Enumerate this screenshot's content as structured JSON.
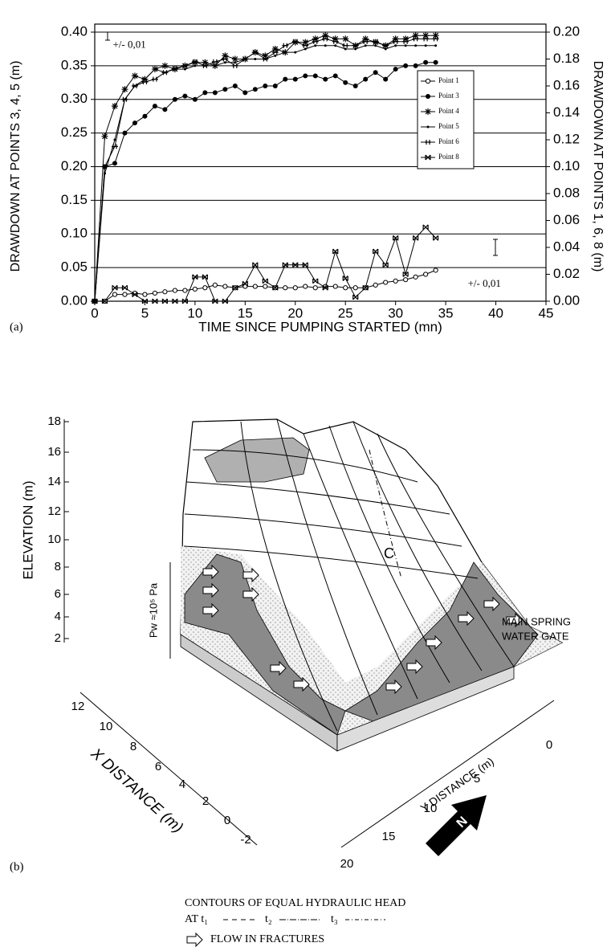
{
  "chart_data": {
    "type": "line",
    "panel_label": "(a)",
    "x_label": "TIME SINCE PUMPING STARTED (mn)",
    "y_label": "DRAWDOWN AT POINTS 3, 4, 5 (m)",
    "y2_label": "DRAWDOWN AT POINTS 1, 6, 8 (m)",
    "x": [
      0,
      1,
      2,
      3,
      4,
      5,
      6,
      7,
      8,
      9,
      10,
      11,
      12,
      13,
      14,
      15,
      16,
      17,
      18,
      19,
      20,
      21,
      22,
      23,
      24,
      25,
      26,
      27,
      28,
      29,
      30,
      31,
      32,
      33,
      34
    ],
    "series": [
      {
        "name": "Point 1",
        "color": "#000000",
        "marker": "open-circle",
        "axis": "y2",
        "values": [
          0,
          0,
          0.005,
          0.005,
          0.006,
          0.005,
          0.006,
          0.007,
          0.008,
          0.008,
          0.009,
          0.01,
          0.012,
          0.011,
          0.01,
          0.011,
          0.011,
          0.011,
          0.01,
          0.01,
          0.01,
          0.011,
          0.01,
          0.011,
          0.011,
          0.01,
          0.01,
          0.01,
          0.012,
          0.014,
          0.015,
          0.016,
          0.018,
          0.02,
          0.023
        ]
      },
      {
        "name": "Point 3",
        "color": "#000000",
        "marker": "filled-circle",
        "values": [
          0,
          0.2,
          0.205,
          0.25,
          0.265,
          0.275,
          0.29,
          0.285,
          0.3,
          0.305,
          0.3,
          0.31,
          0.31,
          0.315,
          0.32,
          0.31,
          0.315,
          0.32,
          0.32,
          0.33,
          0.33,
          0.335,
          0.335,
          0.33,
          0.335,
          0.325,
          0.32,
          0.33,
          0.34,
          0.33,
          0.345,
          0.35,
          0.35,
          0.355,
          0.355
        ]
      },
      {
        "name": "Point 4",
        "color": "#000000",
        "marker": "star",
        "values": [
          0,
          0.245,
          0.29,
          0.315,
          0.335,
          0.33,
          0.345,
          0.35,
          0.345,
          0.35,
          0.355,
          0.355,
          0.35,
          0.365,
          0.36,
          0.36,
          0.37,
          0.365,
          0.375,
          0.37,
          0.385,
          0.385,
          0.39,
          0.395,
          0.39,
          0.39,
          0.38,
          0.39,
          0.385,
          0.38,
          0.39,
          0.39,
          0.395,
          0.395,
          0.395
        ]
      },
      {
        "name": "Point 5",
        "color": "#000000",
        "marker": "dot",
        "values": [
          0,
          0.19,
          0.24,
          0.3,
          0.32,
          0.33,
          0.345,
          0.34,
          0.345,
          0.345,
          0.35,
          0.35,
          0.35,
          0.355,
          0.355,
          0.36,
          0.36,
          0.36,
          0.365,
          0.37,
          0.37,
          0.375,
          0.38,
          0.38,
          0.38,
          0.375,
          0.375,
          0.38,
          0.38,
          0.375,
          0.38,
          0.38,
          0.38,
          0.38,
          0.38
        ]
      },
      {
        "name": "Point 6",
        "color": "#000000",
        "marker": "cross",
        "axis": "y2",
        "values": [
          0,
          0.1,
          0.115,
          0.15,
          0.16,
          0.163,
          0.165,
          0.17,
          0.173,
          0.175,
          0.178,
          0.175,
          0.178,
          0.18,
          0.175,
          0.18,
          0.185,
          0.18,
          0.185,
          0.19,
          0.193,
          0.19,
          0.193,
          0.195,
          0.193,
          0.19,
          0.19,
          0.193,
          0.193,
          0.19,
          0.193,
          0.193,
          0.195,
          0.195,
          0.195
        ]
      },
      {
        "name": "Point 8",
        "color": "#000000",
        "marker": "bowtie",
        "axis": "y2",
        "values": [
          0,
          0,
          0.01,
          0.01,
          0.005,
          0,
          0,
          0,
          0,
          0,
          0.018,
          0.018,
          0,
          0,
          0.01,
          0.013,
          0.027,
          0.015,
          0.01,
          0.027,
          0.027,
          0.027,
          0.015,
          0.01,
          0.037,
          0.017,
          0.003,
          0.01,
          0.037,
          0.027,
          0.047,
          0.02,
          0.047,
          0.055,
          0.047
        ]
      }
    ],
    "xlim": [
      0,
      45
    ],
    "xticks": [
      0,
      5,
      10,
      15,
      20,
      25,
      30,
      35,
      40,
      45
    ],
    "ylim": [
      0,
      0.4
    ],
    "yticks": [
      {
        "value": 0,
        "label": "0.00"
      },
      {
        "value": 0.05,
        "label": "0.05"
      },
      {
        "value": 0.1,
        "label": "0.10"
      },
      {
        "value": 0.15,
        "label": "0.15"
      },
      {
        "value": 0.2,
        "label": "0.20"
      },
      {
        "value": 0.25,
        "label": "0.25"
      },
      {
        "value": 0.3,
        "label": "0.30"
      },
      {
        "value": 0.35,
        "label": "0.35"
      },
      {
        "value": 0.4,
        "label": "0.40"
      }
    ],
    "y2lim": [
      0,
      0.2
    ],
    "y2ticks": [
      {
        "value": 0,
        "label": "0.00"
      },
      {
        "value": 0.02,
        "label": "0.02"
      },
      {
        "value": 0.04,
        "label": "0.04"
      },
      {
        "value": 0.06,
        "label": "0.06"
      },
      {
        "value": 0.08,
        "label": "0.08"
      },
      {
        "value": 0.1,
        "label": "0.10"
      },
      {
        "value": 0.12,
        "label": "0.12"
      },
      {
        "value": 0.14,
        "label": "0.14"
      },
      {
        "value": 0.16,
        "label": "0.16"
      },
      {
        "value": 0.18,
        "label": "0.18"
      },
      {
        "value": 0.2,
        "label": "0.20"
      }
    ],
    "grid": true,
    "legend": "upper right",
    "annotations": [
      "+/- 0,01",
      "+/- 0,01"
    ]
  },
  "figure_b": {
    "panel_label": "(b)",
    "elevation_label": "ELEVATION (m)",
    "elevation_ticks": [
      "18",
      "16",
      "14",
      "12",
      "10",
      "8",
      "6",
      "4",
      "2"
    ],
    "x_distance_label": "X DISTANCE (m)",
    "x_distance_ticks": [
      "12",
      "10",
      "8",
      "6",
      "4",
      "2",
      "0",
      "-2"
    ],
    "y_distance_label": "Y DISTANCE (m)",
    "y_distance_ticks": [
      "0",
      "5",
      "10",
      "15",
      "20"
    ],
    "pressure_label": "Pw ≈10⁵ Pa",
    "point_label": "C",
    "spring_label": [
      "MAIN SPRING",
      "WATER GATE"
    ],
    "legend": {
      "contours_title": "CONTOURS OF EQUAL HYDRAULIC HEAD",
      "at_t1": "AT t₁",
      "t2": "t₂",
      "t3": "t₃",
      "flow": "FLOW IN FRACTURES"
    }
  }
}
